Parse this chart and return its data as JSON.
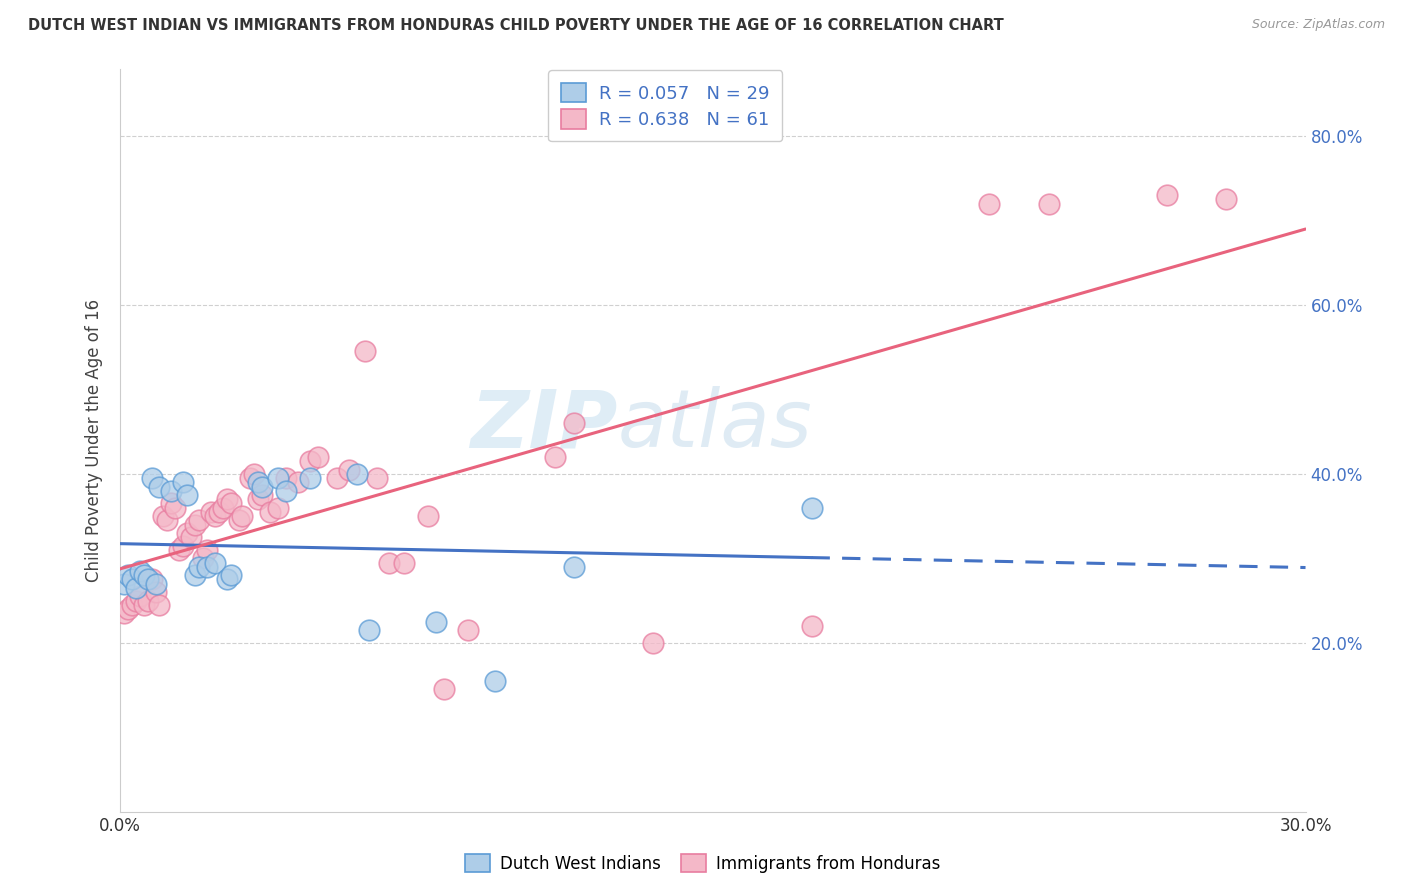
{
  "title": "DUTCH WEST INDIAN VS IMMIGRANTS FROM HONDURAS CHILD POVERTY UNDER THE AGE OF 16 CORRELATION CHART",
  "source": "Source: ZipAtlas.com",
  "ylabel": "Child Poverty Under the Age of 16",
  "ylim": [
    0.0,
    0.88
  ],
  "xlim": [
    0.0,
    0.3
  ],
  "yticks": [
    0.2,
    0.4,
    0.6,
    0.8
  ],
  "ytick_labels": [
    "20.0%",
    "40.0%",
    "60.0%",
    "80.0%"
  ],
  "legend_label1": "Dutch West Indians",
  "legend_label2": "Immigrants from Honduras",
  "blue_color": "#aecde8",
  "blue_edge_color": "#5b9bd5",
  "blue_line_color": "#4472c4",
  "pink_color": "#f4b8c8",
  "pink_edge_color": "#e87da0",
  "pink_line_color": "#e8637d",
  "watermark": "ZIPatlas",
  "background_color": "#ffffff",
  "grid_color": "#d0d0d0",
  "blue_scatter": [
    [
      0.001,
      0.27
    ],
    [
      0.002,
      0.28
    ],
    [
      0.003,
      0.275
    ],
    [
      0.004,
      0.265
    ],
    [
      0.005,
      0.285
    ],
    [
      0.006,
      0.28
    ],
    [
      0.007,
      0.275
    ],
    [
      0.008,
      0.395
    ],
    [
      0.009,
      0.27
    ],
    [
      0.01,
      0.385
    ],
    [
      0.013,
      0.38
    ],
    [
      0.016,
      0.39
    ],
    [
      0.017,
      0.375
    ],
    [
      0.019,
      0.28
    ],
    [
      0.02,
      0.29
    ],
    [
      0.022,
      0.29
    ],
    [
      0.024,
      0.295
    ],
    [
      0.027,
      0.275
    ],
    [
      0.028,
      0.28
    ],
    [
      0.035,
      0.39
    ],
    [
      0.036,
      0.385
    ],
    [
      0.04,
      0.395
    ],
    [
      0.042,
      0.38
    ],
    [
      0.048,
      0.395
    ],
    [
      0.06,
      0.4
    ],
    [
      0.063,
      0.215
    ],
    [
      0.08,
      0.225
    ],
    [
      0.095,
      0.155
    ],
    [
      0.115,
      0.29
    ],
    [
      0.175,
      0.36
    ]
  ],
  "pink_scatter": [
    [
      0.001,
      0.235
    ],
    [
      0.002,
      0.24
    ],
    [
      0.003,
      0.245
    ],
    [
      0.004,
      0.25
    ],
    [
      0.005,
      0.255
    ],
    [
      0.006,
      0.245
    ],
    [
      0.007,
      0.25
    ],
    [
      0.008,
      0.275
    ],
    [
      0.009,
      0.26
    ],
    [
      0.01,
      0.245
    ],
    [
      0.011,
      0.35
    ],
    [
      0.012,
      0.345
    ],
    [
      0.013,
      0.365
    ],
    [
      0.014,
      0.36
    ],
    [
      0.015,
      0.31
    ],
    [
      0.016,
      0.315
    ],
    [
      0.017,
      0.33
    ],
    [
      0.018,
      0.325
    ],
    [
      0.019,
      0.34
    ],
    [
      0.02,
      0.345
    ],
    [
      0.021,
      0.3
    ],
    [
      0.022,
      0.31
    ],
    [
      0.023,
      0.355
    ],
    [
      0.024,
      0.35
    ],
    [
      0.025,
      0.355
    ],
    [
      0.026,
      0.36
    ],
    [
      0.027,
      0.37
    ],
    [
      0.028,
      0.365
    ],
    [
      0.03,
      0.345
    ],
    [
      0.031,
      0.35
    ],
    [
      0.033,
      0.395
    ],
    [
      0.034,
      0.4
    ],
    [
      0.035,
      0.37
    ],
    [
      0.036,
      0.375
    ],
    [
      0.038,
      0.355
    ],
    [
      0.04,
      0.36
    ],
    [
      0.042,
      0.395
    ],
    [
      0.045,
      0.39
    ],
    [
      0.048,
      0.415
    ],
    [
      0.05,
      0.42
    ],
    [
      0.055,
      0.395
    ],
    [
      0.058,
      0.405
    ],
    [
      0.062,
      0.545
    ],
    [
      0.065,
      0.395
    ],
    [
      0.068,
      0.295
    ],
    [
      0.072,
      0.295
    ],
    [
      0.078,
      0.35
    ],
    [
      0.082,
      0.145
    ],
    [
      0.088,
      0.215
    ],
    [
      0.11,
      0.42
    ],
    [
      0.115,
      0.46
    ],
    [
      0.135,
      0.2
    ],
    [
      0.175,
      0.22
    ],
    [
      0.22,
      0.72
    ],
    [
      0.235,
      0.72
    ],
    [
      0.265,
      0.73
    ],
    [
      0.28,
      0.725
    ]
  ]
}
